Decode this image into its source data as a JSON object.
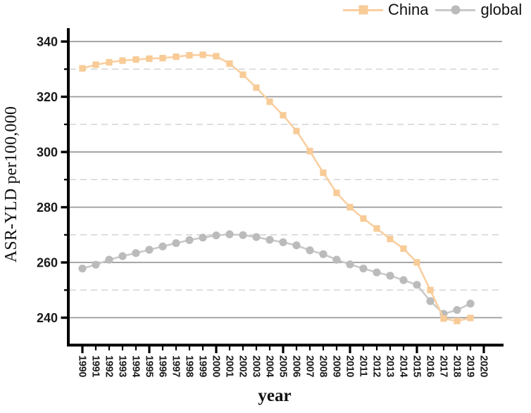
{
  "chart_data": {
    "type": "line",
    "title": "",
    "xlabel": "year",
    "ylabel": "ASR-YLD per100,000",
    "years": [
      1990,
      1991,
      1992,
      1993,
      1994,
      1995,
      1996,
      1997,
      1998,
      1999,
      2000,
      2001,
      2002,
      2003,
      2004,
      2005,
      2006,
      2007,
      2008,
      2009,
      2010,
      2011,
      2012,
      2013,
      2014,
      2015,
      2016,
      2017,
      2018,
      2019
    ],
    "x_axis_tick_labels": [
      "1990",
      "1991",
      "1992",
      "1993",
      "1994",
      "1995",
      "1996",
      "1997",
      "1998",
      "1999",
      "2000",
      "2001",
      "2002",
      "2003",
      "2004",
      "2005",
      "2006",
      "2007",
      "2008",
      "2009",
      "2010",
      "2011",
      "2012",
      "2013",
      "2014",
      "2015",
      "2016",
      "2017",
      "2018",
      "2019",
      "2020"
    ],
    "y_axis": {
      "major_ticks": [
        240,
        260,
        280,
        300,
        320,
        340
      ],
      "minor_ticks": [
        250,
        270,
        290,
        310,
        330
      ],
      "range": [
        230.2,
        344.8
      ]
    },
    "grid": {
      "major_style": "solid",
      "minor_style": "dashed",
      "orientation": "horizontal"
    },
    "legend": {
      "position": "top-right",
      "entries": [
        "China",
        "global"
      ]
    },
    "series": [
      {
        "name": "China",
        "marker": "square",
        "line_color": "#F9CFA0",
        "marker_color": "#F8CB97",
        "values": [
          330.3,
          331.6,
          332.5,
          333.1,
          333.5,
          333.8,
          334.0,
          334.5,
          335.0,
          335.2,
          334.7,
          332.0,
          328.0,
          323.3,
          318.2,
          313.3,
          307.6,
          300.3,
          292.5,
          285.2,
          280.0,
          275.9,
          272.3,
          268.5,
          265.0,
          260.0,
          250.0,
          239.7,
          238.8,
          239.9
        ]
      },
      {
        "name": "global",
        "marker": "circle",
        "line_color": "#C9C9C9",
        "marker_color": "#BBBBBB",
        "values": [
          257.8,
          259.2,
          261.0,
          262.3,
          263.4,
          264.6,
          265.8,
          267.0,
          268.1,
          269.0,
          269.8,
          270.2,
          269.9,
          269.2,
          268.2,
          267.3,
          266.2,
          264.4,
          263.0,
          261.0,
          259.3,
          257.8,
          256.4,
          255.2,
          253.6,
          251.9,
          246.0,
          241.4,
          242.8,
          245.1
        ]
      }
    ]
  },
  "styles": {
    "background": "#FFFFFF",
    "axis_color": "#000000",
    "major_grid_color": "#9A9A9A",
    "minor_grid_color": "#CBCBCB",
    "tick_label_color": "#1A1A1A",
    "text_color": "#111111"
  }
}
